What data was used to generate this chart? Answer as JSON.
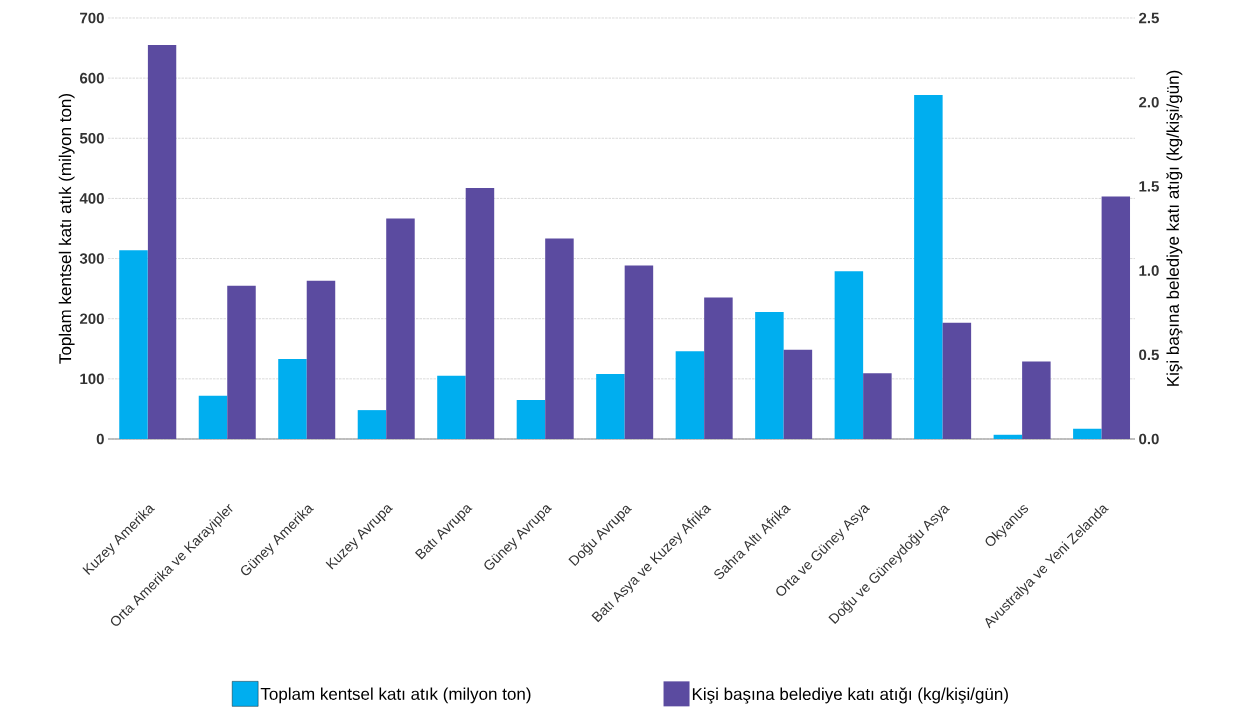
{
  "chart_data": {
    "type": "bar",
    "categories": [
      "Kuzey Amerika",
      "Orta Amerika ve Karayipler",
      "Güney Amerika",
      "Kuzey Avrupa",
      "Batı Avrupa",
      "Güney Avrupa",
      "Doğu Avrupa",
      "Batı Asya ve Kuzey Afrika",
      "Sahra Altı Afrika",
      "Orta ve Güney Asya",
      "Doğu ve Güneydoğu Asya",
      "Okyanus",
      "Avustralya ve Yeni Zelanda"
    ],
    "series": [
      {
        "name": "Toplam kentsel katı atık (milyon ton)",
        "color": "#00aeef",
        "values": [
          314,
          72,
          133,
          48,
          105,
          65,
          108,
          146,
          211,
          279,
          572,
          7,
          17
        ]
      },
      {
        "name": "Kişi başına belediye katı atığı (kg/kişi/gün)",
        "color": "#5b4ba0",
        "axis": "y2",
        "values": [
          2.34,
          0.91,
          0.94,
          1.31,
          1.49,
          1.19,
          1.03,
          0.84,
          0.53,
          0.39,
          0.69,
          0.46,
          1.44
        ]
      }
    ],
    "ylabel": "Toplam kentsel katı atık (milyon ton)",
    "y2label": "Kişi başına belediye katı atığı (kg/kişi/gün)",
    "ylim": [
      0,
      700
    ],
    "yticks": [
      0,
      100,
      200,
      300,
      400,
      500,
      600,
      700
    ],
    "y2lim": [
      0,
      2.5
    ],
    "y2ticks": [
      {
        "value": 0,
        "label": "0.0"
      },
      {
        "value": 0.5,
        "label": "0.5"
      },
      {
        "value": 1,
        "label": "1.0"
      },
      {
        "value": 1.5,
        "label": "1.5"
      },
      {
        "value": 2,
        "label": "2.0"
      },
      {
        "value": 2.5,
        "label": "2.5"
      }
    ],
    "grid": "y",
    "legend": "bottom"
  }
}
